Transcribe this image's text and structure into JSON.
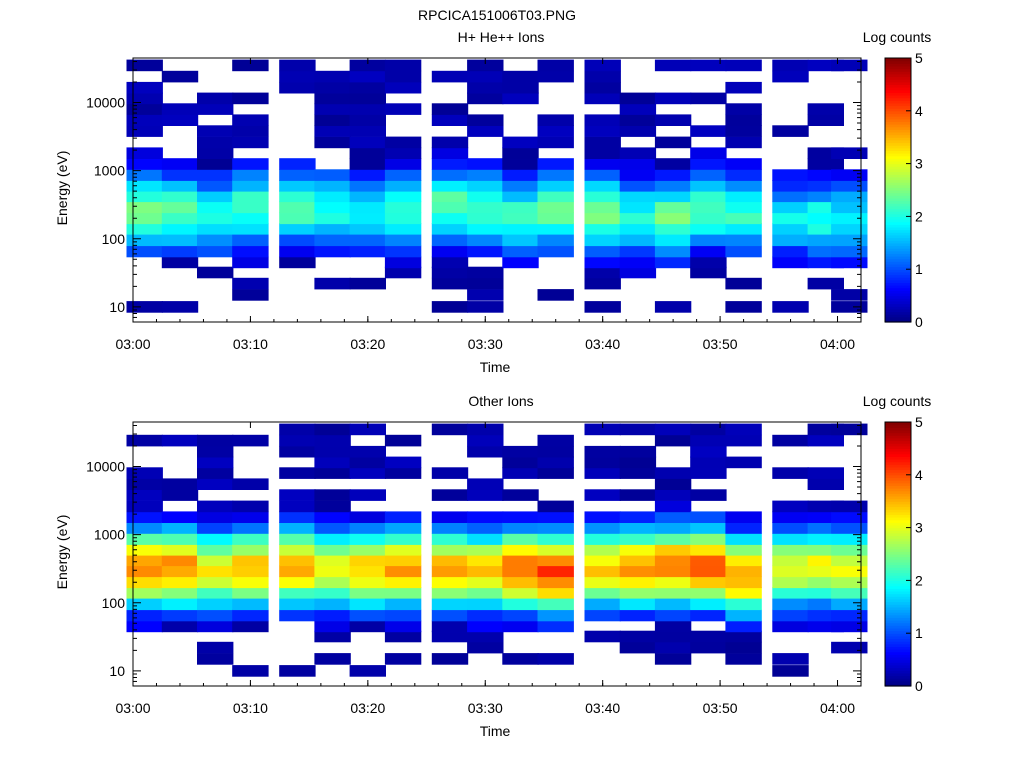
{
  "figure_title": "RPCICA151006T03.PNG",
  "chart_data": [
    {
      "type": "heatmap",
      "title": "H+ He++ Ions",
      "xlabel": "Time",
      "ylabel": "Energy (eV)",
      "yscale": "log",
      "xlim": [
        "03:00",
        "04:02"
      ],
      "ylim": [
        6,
        45000
      ],
      "x_ticks": [
        "03:00",
        "03:10",
        "03:20",
        "03:30",
        "03:40",
        "03:50",
        "04:00"
      ],
      "y_ticks": [
        "10",
        "100",
        "1000",
        "10000"
      ],
      "colorbar": {
        "label": "Log counts",
        "range": [
          0,
          5
        ],
        "ticks": [
          "0",
          "1",
          "2",
          "3",
          "4",
          "5"
        ]
      },
      "time_bins": [
        "03:01",
        "03:04",
        "03:07",
        "03:10",
        "03:14",
        "03:17",
        "03:20",
        "03:23",
        "03:27",
        "03:30",
        "03:33",
        "03:36",
        "03:40",
        "03:43",
        "03:46",
        "03:49",
        "03:52",
        "03:56",
        "03:59",
        "04:01"
      ],
      "energy_bins_eV": [
        10,
        15,
        22,
        32,
        45,
        65,
        95,
        140,
        200,
        290,
        420,
        600,
        860,
        1250,
        1800,
        2600,
        3800,
        5500,
        8000,
        11500,
        16500,
        24000,
        35000
      ],
      "peak_log_counts_by_time": [
        2.5,
        2.3,
        2.0,
        2.2,
        2.3,
        2.0,
        1.7,
        2.1,
        2.3,
        2.2,
        2.1,
        2.4,
        2.5,
        2.0,
        2.4,
        2.3,
        2.1,
        1.8,
        2.0,
        1.9
      ],
      "peak_energy_eV_by_time": [
        260,
        250,
        230,
        280,
        300,
        260,
        240,
        270,
        300,
        280,
        220,
        260,
        240,
        210,
        200,
        280,
        230,
        200,
        190,
        180
      ]
    },
    {
      "type": "heatmap",
      "title": "Other Ions",
      "xlabel": "Time",
      "ylabel": "Energy (eV)",
      "yscale": "log",
      "xlim": [
        "03:00",
        "04:02"
      ],
      "ylim": [
        6,
        45000
      ],
      "x_ticks": [
        "03:00",
        "03:10",
        "03:20",
        "03:30",
        "03:40",
        "03:50",
        "04:00"
      ],
      "y_ticks": [
        "10",
        "100",
        "1000",
        "10000"
      ],
      "colorbar": {
        "label": "Log counts",
        "range": [
          0,
          5
        ],
        "ticks": [
          "0",
          "1",
          "2",
          "3",
          "4",
          "5"
        ]
      },
      "time_bins": [
        "03:01",
        "03:04",
        "03:07",
        "03:10",
        "03:14",
        "03:17",
        "03:20",
        "03:23",
        "03:27",
        "03:30",
        "03:33",
        "03:36",
        "03:40",
        "03:43",
        "03:46",
        "03:49",
        "03:52",
        "03:56",
        "03:59",
        "04:01"
      ],
      "energy_bins_eV": [
        10,
        15,
        22,
        32,
        45,
        65,
        95,
        140,
        200,
        290,
        420,
        600,
        860,
        1250,
        1800,
        2600,
        3800,
        5500,
        8000,
        11500,
        16500,
        24000,
        35000
      ],
      "peak_log_counts_by_time": [
        3.8,
        3.7,
        3.1,
        3.4,
        3.5,
        3.2,
        3.4,
        3.6,
        3.5,
        3.3,
        3.9,
        4.1,
        3.4,
        3.7,
        3.8,
        3.9,
        3.6,
        3.0,
        3.1,
        3.0
      ],
      "peak_energy_eV_by_time": [
        330,
        320,
        300,
        320,
        340,
        310,
        300,
        330,
        320,
        300,
        300,
        280,
        310,
        330,
        350,
        330,
        250,
        320,
        330,
        300
      ]
    }
  ]
}
